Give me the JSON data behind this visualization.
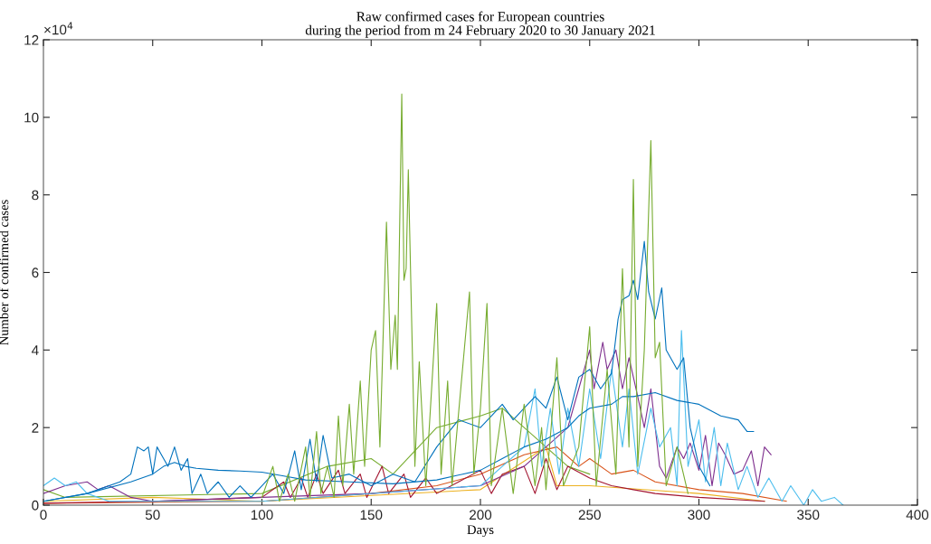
{
  "chart_data": {
    "type": "line",
    "title": "Raw confirmed cases for European countries\nduring the period from m 24 February 2020 to 30 January 2021",
    "xlabel": "Days",
    "ylabel": "Number of confirmed cases",
    "annotations": [
      "×10$^{4}$"
    ],
    "xlim": [
      0,
      400
    ],
    "xticks": [
      0,
      50,
      100,
      150,
      200,
      250,
      300,
      350,
      400
    ],
    "ylim": [
      0,
      12
    ],
    "yticks": [
      0,
      2,
      4,
      6,
      8,
      10,
      12
    ],
    "grid": false,
    "series": [
      {
        "color": "#77ac30",
        "x": [
          0,
          10,
          100,
          130,
          150,
          160,
          180,
          200,
          210,
          220,
          230,
          240,
          250
        ],
        "values": [
          0.4,
          0.2,
          0.3,
          1.0,
          1.2,
          0.8,
          2.0,
          2.3,
          2.5,
          2.0,
          1.5,
          1.0,
          0.8
        ]
      },
      {
        "color": "#edb120",
        "x": [
          0,
          50,
          100,
          200,
          230,
          235,
          250,
          300,
          330
        ],
        "values": [
          0.1,
          0.2,
          0.1,
          0.4,
          1.5,
          0.5,
          0.5,
          0.3,
          0.1
        ]
      },
      {
        "color": "#d95319",
        "x": [
          0,
          100,
          150,
          180,
          200,
          220,
          235,
          245,
          250,
          260,
          270,
          280,
          300,
          320,
          340
        ],
        "values": [
          0.05,
          0.1,
          0.3,
          0.5,
          0.8,
          1.3,
          1.5,
          1.0,
          1.2,
          0.8,
          0.9,
          0.6,
          0.4,
          0.3,
          0.1
        ]
      },
      {
        "color": "#a2142f",
        "x": [
          0,
          50,
          100,
          110,
          113,
          118,
          121,
          125,
          128,
          135,
          138,
          145,
          148,
          155,
          158,
          165,
          168,
          175,
          180,
          190,
          200,
          205,
          210,
          220,
          225,
          230,
          235,
          240,
          250,
          260,
          270,
          280,
          300,
          330
        ],
        "values": [
          0.05,
          0.1,
          0.2,
          0.6,
          0.2,
          0.7,
          0.2,
          0.8,
          0.3,
          0.9,
          0.3,
          0.8,
          0.2,
          1.0,
          0.3,
          0.8,
          0.2,
          0.7,
          0.3,
          0.6,
          0.9,
          0.3,
          0.8,
          1.0,
          0.3,
          1.2,
          0.4,
          1.0,
          0.7,
          0.5,
          0.4,
          0.3,
          0.2,
          0.1
        ]
      },
      {
        "color": "#7e2f8e",
        "x": [
          0,
          10,
          20,
          25,
          30,
          40,
          50,
          100,
          150,
          200,
          220,
          230,
          240,
          245,
          250,
          252,
          256,
          258,
          262,
          265,
          268,
          272,
          275,
          278,
          282,
          285,
          290,
          293,
          296,
          300,
          303,
          306,
          309,
          312,
          316,
          320,
          324,
          327,
          330,
          333
        ],
        "values": [
          0.3,
          0.5,
          0.6,
          0.4,
          0.5,
          0.2,
          0.1,
          0.2,
          0.3,
          0.5,
          1.0,
          1.5,
          2.0,
          3.0,
          4.0,
          3.0,
          4.2,
          3.5,
          4.0,
          3.0,
          3.8,
          2.8,
          2.0,
          3.0,
          1.0,
          0.7,
          1.5,
          1.2,
          1.6,
          0.9,
          1.8,
          0.5,
          1.6,
          1.3,
          0.8,
          0.9,
          1.4,
          0.5,
          1.5,
          1.3
        ]
      },
      {
        "color": "#4dbeee",
        "x": [
          0,
          5,
          10,
          15,
          20,
          30,
          100,
          200,
          220,
          225,
          228,
          232,
          236,
          240,
          245,
          250,
          255,
          260,
          265,
          268,
          272,
          278,
          282,
          287,
          290,
          292,
          295,
          300,
          303,
          307,
          310,
          313,
          318,
          322,
          327,
          332,
          338,
          342,
          348,
          352,
          356,
          362,
          366
        ],
        "values": [
          0.5,
          0.7,
          0.5,
          0.6,
          0.3,
          0.1,
          0.1,
          0.5,
          1.5,
          3.0,
          1.0,
          2.5,
          0.8,
          2.5,
          1.0,
          3.0,
          1.2,
          3.5,
          1.5,
          3.0,
          0.8,
          2.5,
          1.5,
          2.0,
          0.5,
          4.5,
          1.0,
          2.2,
          0.6,
          2.0,
          0.5,
          1.6,
          0.4,
          1.0,
          0.2,
          0.7,
          0.1,
          0.5,
          0.0,
          0.4,
          0.1,
          0.2,
          0.0
        ]
      },
      {
        "color": "#0072bd",
        "x": [
          0,
          20,
          40,
          50,
          55,
          60,
          65,
          70,
          80,
          90,
          100,
          110,
          120,
          140,
          160,
          180,
          200,
          210,
          220,
          230,
          240,
          245,
          250,
          260,
          265,
          270,
          280,
          290,
          300,
          310,
          318,
          322,
          325
        ],
        "values": [
          0.1,
          0.3,
          0.6,
          0.8,
          1.0,
          1.1,
          1.0,
          0.95,
          0.9,
          0.88,
          0.85,
          0.75,
          0.65,
          0.6,
          0.55,
          0.65,
          0.9,
          1.2,
          1.5,
          1.7,
          2.0,
          2.3,
          2.5,
          2.6,
          2.8,
          2.8,
          2.9,
          2.7,
          2.6,
          2.3,
          2.2,
          1.9,
          1.9
        ]
      },
      {
        "color": "#0072bd",
        "x": [
          0,
          20,
          35,
          40,
          43,
          46,
          48,
          50,
          52,
          54,
          57,
          60,
          63,
          66,
          68,
          72,
          75,
          80,
          85,
          90,
          95,
          100,
          105,
          110,
          115,
          118,
          122,
          125,
          128,
          132,
          140,
          150,
          160,
          170,
          180,
          190,
          200,
          205,
          210,
          215,
          220,
          225,
          230,
          235,
          240,
          245,
          250,
          255,
          260,
          263,
          265,
          268,
          270,
          272,
          275,
          277,
          280,
          283,
          285,
          290,
          293,
          296,
          300,
          305
        ],
        "values": [
          0.1,
          0.3,
          0.6,
          0.8,
          1.5,
          1.4,
          1.5,
          0.8,
          1.5,
          1.3,
          1.0,
          1.5,
          0.9,
          1.2,
          0.3,
          0.8,
          0.3,
          0.6,
          0.2,
          0.5,
          0.2,
          0.5,
          0.8,
          0.3,
          1.4,
          0.4,
          1.7,
          0.6,
          1.8,
          0.7,
          0.8,
          0.5,
          0.8,
          0.6,
          1.5,
          2.2,
          2.0,
          2.3,
          2.6,
          2.2,
          2.5,
          2.8,
          2.5,
          3.3,
          2.2,
          3.3,
          3.5,
          3.0,
          3.4,
          4.8,
          5.3,
          5.4,
          5.8,
          5.3,
          6.8,
          5.5,
          4.8,
          5.6,
          4.0,
          3.5,
          3.8,
          2.0,
          1.0,
          0.5
        ]
      },
      {
        "color": "#77ac30",
        "x": [
          100,
          105,
          108,
          112,
          115,
          120,
          122,
          125,
          127,
          130,
          133,
          135,
          137,
          140,
          142,
          145,
          147,
          150,
          152,
          154,
          157,
          159,
          161,
          162,
          164,
          165,
          166,
          167,
          170,
          172,
          175,
          180,
          182,
          185,
          187,
          195,
          197,
          200,
          203,
          205,
          210,
          215,
          220,
          225,
          228,
          230,
          235,
          238,
          245,
          250,
          253,
          258,
          262,
          265,
          268,
          270,
          272,
          275,
          278,
          280,
          282,
          285,
          290,
          295
        ],
        "values": [
          0.2,
          1.0,
          0.1,
          0.8,
          0.1,
          1.5,
          0.2,
          1.9,
          0.3,
          1.0,
          0.2,
          2.3,
          0.5,
          2.6,
          0.8,
          3.2,
          1.0,
          4.0,
          4.5,
          1.5,
          7.3,
          3.5,
          4.9,
          3.5,
          10.6,
          5.8,
          6.1,
          8.65,
          1.0,
          3.7,
          0.5,
          5.2,
          0.8,
          3.2,
          0.5,
          5.5,
          0.8,
          2.5,
          5.2,
          0.5,
          2.5,
          0.3,
          2.6,
          0.5,
          2.0,
          0.4,
          3.8,
          0.5,
          1.5,
          4.6,
          0.5,
          3.5,
          0.8,
          6.1,
          1.5,
          8.4,
          1.0,
          4.0,
          9.4,
          3.8,
          4.2,
          0.5,
          1.5,
          0.3
        ]
      }
    ]
  }
}
